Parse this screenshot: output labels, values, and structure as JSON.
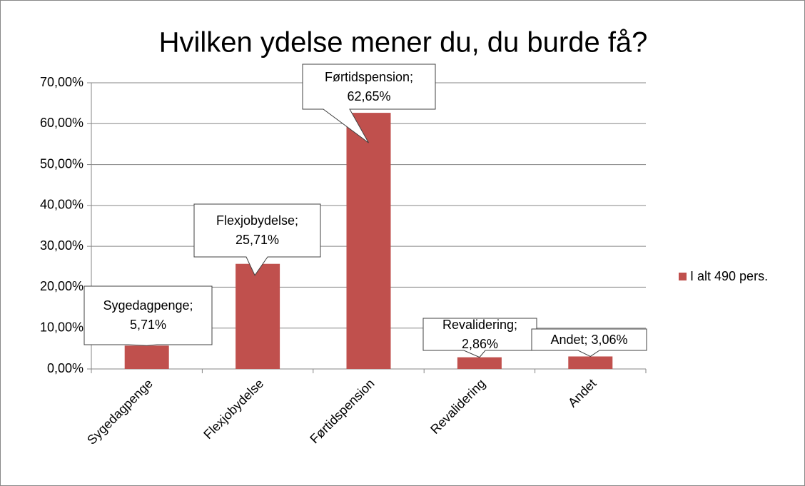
{
  "chart_data": {
    "type": "bar",
    "title": "Hvilken ydelse mener du, du burde få?",
    "categories": [
      "Sygedagpenge",
      "Flexjobydelse",
      "Førtidspension",
      "Revalidering",
      "Andet"
    ],
    "series": [
      {
        "name": "I alt 490 pers.",
        "color": "#c0504d",
        "values": [
          5.71,
          25.71,
          62.65,
          2.86,
          3.06
        ],
        "value_labels": [
          "Sygedagpenge; 5,71%",
          "Flexjobydelse; 25,71%",
          "Førtidspension; 62,65%",
          "Revalidering; 2,86%",
          "Andet; 3,06%"
        ]
      }
    ],
    "ylim": [
      0,
      70
    ],
    "yticks": [
      {
        "value": 0,
        "label": "0,00%"
      },
      {
        "value": 10,
        "label": "10,00%"
      },
      {
        "value": 20,
        "label": "20,00%"
      },
      {
        "value": 30,
        "label": "30,00%"
      },
      {
        "value": 40,
        "label": "40,00%"
      },
      {
        "value": 50,
        "label": "50,00%"
      },
      {
        "value": 60,
        "label": "60,00%"
      },
      {
        "value": 70,
        "label": "70,00%"
      }
    ],
    "grid": true,
    "legend": "right"
  }
}
